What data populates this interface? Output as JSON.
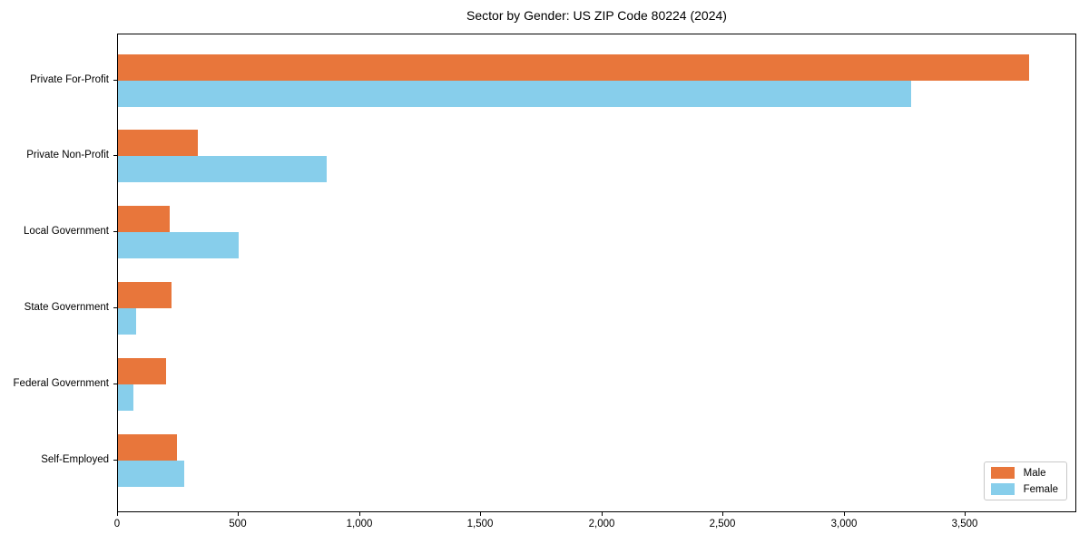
{
  "title": "Sector by Gender: US ZIP Code 80224 (2024)",
  "colors": {
    "male": "#e8763b",
    "female": "#87ceeb",
    "axis": "#000000",
    "legend_border": "#c8c8c8",
    "background": "#ffffff"
  },
  "legend": {
    "position": "lower right",
    "items": [
      {
        "label": "Male",
        "color": "#e8763b"
      },
      {
        "label": "Female",
        "color": "#87ceeb"
      }
    ]
  },
  "chart_data": {
    "type": "bar",
    "orientation": "horizontal",
    "title": "Sector by Gender: US ZIP Code 80224 (2024)",
    "xlabel": "",
    "ylabel": "",
    "grid": false,
    "categories": [
      "Private For-Profit",
      "Private Non-Profit",
      "Local Government",
      "State Government",
      "Federal Government",
      "Self-Employed"
    ],
    "series": [
      {
        "name": "Male",
        "color": "#e8763b",
        "values": [
          3770,
          330,
          215,
          220,
          200,
          245
        ]
      },
      {
        "name": "Female",
        "color": "#87ceeb",
        "values": [
          3280,
          865,
          500,
          75,
          65,
          275
        ]
      }
    ],
    "xlim": [
      0,
      3960
    ],
    "xticks": [
      0,
      500,
      1000,
      1500,
      2000,
      2500,
      3000,
      3500
    ],
    "xtick_labels": [
      "0",
      "500",
      "1,000",
      "1,500",
      "2,000",
      "2,500",
      "3,000",
      "3,500"
    ],
    "legend_position": "lower right"
  }
}
